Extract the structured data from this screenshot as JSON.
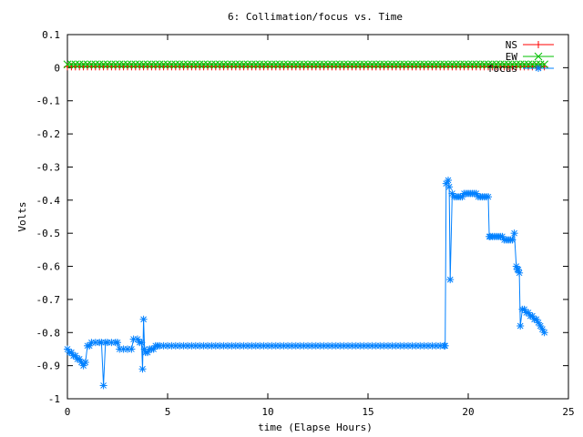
{
  "chart_data": {
    "type": "line",
    "title": "6: Collimation/focus vs. Time",
    "xlabel": "time (Elapse Hours)",
    "ylabel": "Volts",
    "xlim": [
      0,
      25
    ],
    "ylim": [
      -1,
      0.1
    ],
    "x_ticks": [
      "0",
      "5",
      "10",
      "15",
      "20",
      "25"
    ],
    "y_ticks": [
      "0.1",
      "0",
      "-0.1",
      "-0.2",
      "-0.3",
      "-0.4",
      "-0.5",
      "-0.6",
      "-0.7",
      "-0.8",
      "-0.9",
      "-1"
    ],
    "grid": false,
    "legend_position": "top-right",
    "series": [
      {
        "name": "NS",
        "color": "#ff0000",
        "marker": "plus",
        "x": [
          0,
          0.2,
          0.4,
          0.6,
          0.8,
          1,
          1.2,
          1.4,
          1.6,
          1.8,
          2,
          2.2,
          2.4,
          2.6,
          2.8,
          3,
          3.2,
          3.4,
          3.6,
          3.8,
          4,
          4.2,
          4.4,
          4.6,
          4.8,
          5,
          5.2,
          5.4,
          5.6,
          5.8,
          6,
          6.2,
          6.4,
          6.6,
          6.8,
          7,
          7.2,
          7.4,
          7.6,
          7.8,
          8,
          8.2,
          8.4,
          8.6,
          8.8,
          9,
          9.2,
          9.4,
          9.6,
          9.8,
          10,
          10.2,
          10.4,
          10.6,
          10.8,
          11,
          11.2,
          11.4,
          11.6,
          11.8,
          12,
          12.2,
          12.4,
          12.6,
          12.8,
          13,
          13.2,
          13.4,
          13.6,
          13.8,
          14,
          14.2,
          14.4,
          14.6,
          14.8,
          15,
          15.2,
          15.4,
          15.6,
          15.8,
          16,
          16.2,
          16.4,
          16.6,
          16.8,
          17,
          17.2,
          17.4,
          17.6,
          17.8,
          18,
          18.2,
          18.4,
          18.6,
          18.8,
          19,
          19.2,
          19.4,
          19.6,
          19.8,
          20,
          20.2,
          20.4,
          20.6,
          20.8,
          21,
          21.2,
          21.4,
          21.6,
          21.8,
          22,
          22.2,
          22.4,
          22.6,
          22.8,
          23,
          23.2,
          23.4,
          23.6,
          23.8
        ],
        "y": [
          0.003,
          0.003,
          0.003,
          0.003,
          0.003,
          0.003,
          0.003,
          0.003,
          0.003,
          0.003,
          0.003,
          0.003,
          0.003,
          0.003,
          0.003,
          0.003,
          0.003,
          0.003,
          0.003,
          0.003,
          0.003,
          0.003,
          0.003,
          0.003,
          0.003,
          0.003,
          0.003,
          0.003,
          0.003,
          0.003,
          0.003,
          0.003,
          0.003,
          0.003,
          0.003,
          0.003,
          0.003,
          0.003,
          0.003,
          0.003,
          0.003,
          0.003,
          0.003,
          0.003,
          0.003,
          0.003,
          0.003,
          0.003,
          0.003,
          0.003,
          0.003,
          0.003,
          0.003,
          0.003,
          0.003,
          0.003,
          0.003,
          0.003,
          0.003,
          0.003,
          0.003,
          0.003,
          0.003,
          0.003,
          0.003,
          0.003,
          0.003,
          0.003,
          0.003,
          0.003,
          0.003,
          0.003,
          0.003,
          0.003,
          0.003,
          0.003,
          0.003,
          0.003,
          0.003,
          0.003,
          0.003,
          0.003,
          0.003,
          0.003,
          0.003,
          0.003,
          0.003,
          0.003,
          0.003,
          0.003,
          0.003,
          0.003,
          0.003,
          0.003,
          0.003,
          0.003,
          0.003,
          0.003,
          0.003,
          0.003,
          0.003,
          0.003,
          0.003,
          0.003,
          0.003,
          0.003,
          0.003,
          0.003,
          0.003,
          0.003,
          0.003,
          0.003,
          0.003,
          0.003,
          0.003,
          0.003,
          0.003,
          0.003,
          0.003,
          0.003
        ]
      },
      {
        "name": "EW",
        "color": "#00c000",
        "marker": "cross",
        "x": [
          0,
          0.2,
          0.4,
          0.6,
          0.8,
          1,
          1.2,
          1.4,
          1.6,
          1.8,
          2,
          2.2,
          2.4,
          2.6,
          2.8,
          3,
          3.2,
          3.4,
          3.6,
          3.8,
          4,
          4.2,
          4.4,
          4.6,
          4.8,
          5,
          5.2,
          5.4,
          5.6,
          5.8,
          6,
          6.2,
          6.4,
          6.6,
          6.8,
          7,
          7.2,
          7.4,
          7.6,
          7.8,
          8,
          8.2,
          8.4,
          8.6,
          8.8,
          9,
          9.2,
          9.4,
          9.6,
          9.8,
          10,
          10.2,
          10.4,
          10.6,
          10.8,
          11,
          11.2,
          11.4,
          11.6,
          11.8,
          12,
          12.2,
          12.4,
          12.6,
          12.8,
          13,
          13.2,
          13.4,
          13.6,
          13.8,
          14,
          14.2,
          14.4,
          14.6,
          14.8,
          15,
          15.2,
          15.4,
          15.6,
          15.8,
          16,
          16.2,
          16.4,
          16.6,
          16.8,
          17,
          17.2,
          17.4,
          17.6,
          17.8,
          18,
          18.2,
          18.4,
          18.6,
          18.8,
          19,
          19.2,
          19.4,
          19.6,
          19.8,
          20,
          20.2,
          20.4,
          20.6,
          20.8,
          21,
          21.2,
          21.4,
          21.6,
          21.8,
          22,
          22.2,
          22.4,
          22.6,
          22.8,
          23,
          23.2,
          23.4,
          23.6,
          23.8
        ],
        "y": [
          0.01,
          0.01,
          0.01,
          0.01,
          0.01,
          0.01,
          0.01,
          0.01,
          0.01,
          0.01,
          0.01,
          0.01,
          0.01,
          0.01,
          0.01,
          0.01,
          0.01,
          0.01,
          0.01,
          0.01,
          0.01,
          0.01,
          0.01,
          0.01,
          0.01,
          0.01,
          0.01,
          0.01,
          0.01,
          0.01,
          0.01,
          0.01,
          0.01,
          0.01,
          0.01,
          0.01,
          0.01,
          0.01,
          0.01,
          0.01,
          0.01,
          0.01,
          0.01,
          0.01,
          0.01,
          0.01,
          0.01,
          0.01,
          0.01,
          0.01,
          0.01,
          0.01,
          0.01,
          0.01,
          0.01,
          0.01,
          0.01,
          0.01,
          0.01,
          0.01,
          0.01,
          0.01,
          0.01,
          0.01,
          0.01,
          0.01,
          0.01,
          0.01,
          0.01,
          0.01,
          0.01,
          0.01,
          0.01,
          0.01,
          0.01,
          0.01,
          0.01,
          0.01,
          0.01,
          0.01,
          0.01,
          0.01,
          0.01,
          0.01,
          0.01,
          0.01,
          0.01,
          0.01,
          0.01,
          0.01,
          0.01,
          0.01,
          0.01,
          0.01,
          0.01,
          0.01,
          0.01,
          0.01,
          0.01,
          0.01,
          0.01,
          0.01,
          0.01,
          0.01,
          0.01,
          0.01,
          0.01,
          0.01,
          0.01,
          0.01,
          0.01,
          0.01,
          0.01,
          0.01,
          0.01,
          0.01,
          0.01,
          0.01,
          0.01,
          0.01
        ]
      },
      {
        "name": "focus",
        "color": "#0080ff",
        "marker": "star",
        "x": [
          0,
          0.1,
          0.2,
          0.3,
          0.4,
          0.5,
          0.6,
          0.7,
          0.8,
          0.9,
          1.0,
          1.1,
          1.2,
          1.4,
          1.6,
          1.7,
          1.8,
          1.9,
          2.0,
          2.2,
          2.4,
          2.5,
          2.6,
          2.8,
          3.0,
          3.2,
          3.3,
          3.5,
          3.6,
          3.7,
          3.75,
          3.8,
          3.85,
          3.9,
          4.0,
          4.1,
          4.2,
          4.3,
          4.4,
          4.5,
          4.6,
          4.8,
          5.0,
          5.2,
          5.4,
          5.6,
          5.8,
          6.0,
          6.2,
          6.4,
          6.6,
          6.8,
          7.0,
          7.2,
          7.4,
          7.6,
          7.8,
          8.0,
          8.2,
          8.4,
          8.6,
          8.8,
          9.0,
          9.2,
          9.4,
          9.6,
          9.8,
          10.0,
          10.2,
          10.4,
          10.6,
          10.8,
          11.0,
          11.2,
          11.4,
          11.6,
          11.8,
          12.0,
          12.2,
          12.4,
          12.6,
          12.8,
          13.0,
          13.2,
          13.4,
          13.6,
          13.8,
          14.0,
          14.2,
          14.4,
          14.6,
          14.8,
          15.0,
          15.2,
          15.4,
          15.6,
          15.8,
          16.0,
          16.2,
          16.4,
          16.6,
          16.8,
          17.0,
          17.2,
          17.4,
          17.6,
          17.8,
          18.0,
          18.2,
          18.4,
          18.6,
          18.8,
          18.85,
          18.9,
          19.0,
          19.05,
          19.1,
          19.2,
          19.3,
          19.4,
          19.5,
          19.6,
          19.7,
          19.8,
          19.9,
          20.0,
          20.1,
          20.2,
          20.3,
          20.4,
          20.5,
          20.6,
          20.7,
          20.8,
          20.9,
          21.0,
          21.05,
          21.1,
          21.2,
          21.3,
          21.4,
          21.5,
          21.6,
          21.7,
          21.8,
          21.9,
          22.0,
          22.1,
          22.2,
          22.3,
          22.4,
          22.45,
          22.5,
          22.55,
          22.6,
          22.7,
          22.8,
          22.9,
          23.0,
          23.1,
          23.2,
          23.3,
          23.4,
          23.5,
          23.6,
          23.7,
          23.8
        ],
        "y": [
          -0.85,
          -0.86,
          -0.86,
          -0.87,
          -0.87,
          -0.88,
          -0.88,
          -0.89,
          -0.9,
          -0.89,
          -0.84,
          -0.84,
          -0.83,
          -0.83,
          -0.83,
          -0.83,
          -0.96,
          -0.83,
          -0.83,
          -0.83,
          -0.83,
          -0.83,
          -0.85,
          -0.85,
          -0.85,
          -0.85,
          -0.82,
          -0.82,
          -0.83,
          -0.83,
          -0.91,
          -0.76,
          -0.85,
          -0.86,
          -0.86,
          -0.85,
          -0.85,
          -0.85,
          -0.84,
          -0.84,
          -0.84,
          -0.84,
          -0.84,
          -0.84,
          -0.84,
          -0.84,
          -0.84,
          -0.84,
          -0.84,
          -0.84,
          -0.84,
          -0.84,
          -0.84,
          -0.84,
          -0.84,
          -0.84,
          -0.84,
          -0.84,
          -0.84,
          -0.84,
          -0.84,
          -0.84,
          -0.84,
          -0.84,
          -0.84,
          -0.84,
          -0.84,
          -0.84,
          -0.84,
          -0.84,
          -0.84,
          -0.84,
          -0.84,
          -0.84,
          -0.84,
          -0.84,
          -0.84,
          -0.84,
          -0.84,
          -0.84,
          -0.84,
          -0.84,
          -0.84,
          -0.84,
          -0.84,
          -0.84,
          -0.84,
          -0.84,
          -0.84,
          -0.84,
          -0.84,
          -0.84,
          -0.84,
          -0.84,
          -0.84,
          -0.84,
          -0.84,
          -0.84,
          -0.84,
          -0.84,
          -0.84,
          -0.84,
          -0.84,
          -0.84,
          -0.84,
          -0.84,
          -0.84,
          -0.84,
          -0.84,
          -0.84,
          -0.84,
          -0.84,
          -0.84,
          -0.35,
          -0.34,
          -0.36,
          -0.64,
          -0.38,
          -0.39,
          -0.39,
          -0.39,
          -0.39,
          -0.39,
          -0.38,
          -0.38,
          -0.38,
          -0.38,
          -0.38,
          -0.38,
          -0.38,
          -0.39,
          -0.39,
          -0.39,
          -0.39,
          -0.39,
          -0.39,
          -0.51,
          -0.51,
          -0.51,
          -0.51,
          -0.51,
          -0.51,
          -0.51,
          -0.51,
          -0.52,
          -0.52,
          -0.52,
          -0.52,
          -0.52,
          -0.5,
          -0.6,
          -0.61,
          -0.61,
          -0.62,
          -0.78,
          -0.73,
          -0.73,
          -0.74,
          -0.74,
          -0.75,
          -0.75,
          -0.76,
          -0.76,
          -0.77,
          -0.78,
          -0.79,
          -0.8
        ]
      }
    ]
  }
}
